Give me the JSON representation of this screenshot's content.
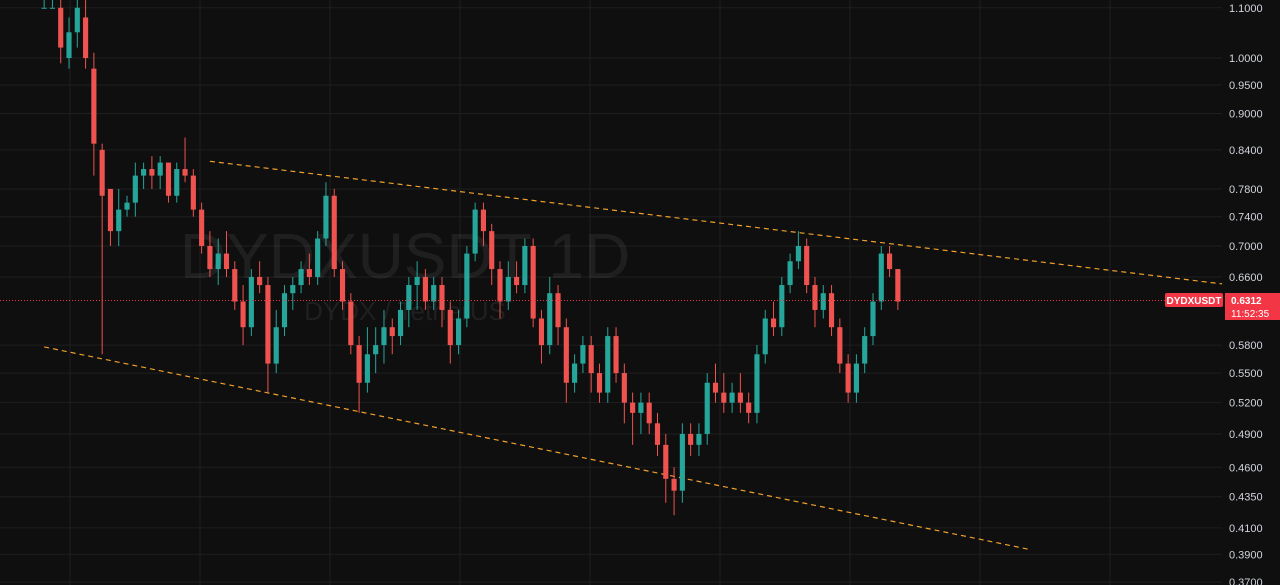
{
  "chart_data": {
    "type": "candlestick",
    "symbol_watermark": "DYDXUSDT 1D",
    "pair_watermark": "DYDX / TetherUS",
    "y_scale": "log",
    "ylim": [
      0.37,
      1.11
    ],
    "y_ticks": [
      "1.1000",
      "1.0000",
      "0.9500",
      "0.9000",
      "0.8400",
      "0.7800",
      "0.7400",
      "0.7000",
      "0.6600",
      "0.5800",
      "0.5500",
      "0.5200",
      "0.4900",
      "0.4600",
      "0.4350",
      "0.4100",
      "0.3900",
      "0.3700"
    ],
    "last_price": {
      "symbol": "DYDXUSDT",
      "price": "0.6312",
      "value": 0.6312,
      "countdown": "11:52:35"
    },
    "trendlines": [
      {
        "name": "upper",
        "from": [
          20,
          0.822
        ],
        "to": [
          158,
          0.632
        ]
      },
      {
        "name": "lower",
        "from": [
          0,
          0.578
        ],
        "to": [
          138,
          0.37
        ]
      }
    ],
    "candles": [
      [
        1.1,
        1.12,
        1.1,
        1.1
      ],
      [
        1.1,
        1.12,
        1.1,
        1.1
      ],
      [
        1.1,
        1.12,
        0.99,
        1.02
      ],
      [
        1.0,
        1.08,
        0.98,
        1.05
      ],
      [
        1.05,
        1.12,
        1.02,
        1.1
      ],
      [
        1.08,
        1.12,
        0.98,
        1.0
      ],
      [
        0.98,
        1.01,
        0.8,
        0.85
      ],
      [
        0.84,
        0.85,
        0.57,
        0.77
      ],
      [
        0.78,
        0.78,
        0.7,
        0.72
      ],
      [
        0.72,
        0.78,
        0.7,
        0.75
      ],
      [
        0.75,
        0.77,
        0.74,
        0.76
      ],
      [
        0.76,
        0.82,
        0.74,
        0.8
      ],
      [
        0.8,
        0.82,
        0.78,
        0.81
      ],
      [
        0.81,
        0.83,
        0.78,
        0.8
      ],
      [
        0.8,
        0.83,
        0.78,
        0.82
      ],
      [
        0.82,
        0.82,
        0.76,
        0.77
      ],
      [
        0.77,
        0.82,
        0.76,
        0.81
      ],
      [
        0.81,
        0.86,
        0.79,
        0.8
      ],
      [
        0.8,
        0.81,
        0.74,
        0.75
      ],
      [
        0.75,
        0.76,
        0.69,
        0.7
      ],
      [
        0.7,
        0.72,
        0.66,
        0.67
      ],
      [
        0.67,
        0.71,
        0.65,
        0.69
      ],
      [
        0.69,
        0.72,
        0.66,
        0.67
      ],
      [
        0.67,
        0.68,
        0.62,
        0.63
      ],
      [
        0.63,
        0.65,
        0.58,
        0.6
      ],
      [
        0.6,
        0.67,
        0.59,
        0.66
      ],
      [
        0.66,
        0.68,
        0.64,
        0.65
      ],
      [
        0.65,
        0.66,
        0.53,
        0.56
      ],
      [
        0.56,
        0.62,
        0.55,
        0.6
      ],
      [
        0.6,
        0.65,
        0.59,
        0.64
      ],
      [
        0.64,
        0.66,
        0.62,
        0.65
      ],
      [
        0.65,
        0.68,
        0.64,
        0.67
      ],
      [
        0.67,
        0.69,
        0.65,
        0.66
      ],
      [
        0.66,
        0.72,
        0.65,
        0.71
      ],
      [
        0.71,
        0.79,
        0.7,
        0.77
      ],
      [
        0.77,
        0.78,
        0.66,
        0.67
      ],
      [
        0.67,
        0.68,
        0.62,
        0.63
      ],
      [
        0.63,
        0.64,
        0.57,
        0.58
      ],
      [
        0.58,
        0.59,
        0.51,
        0.54
      ],
      [
        0.54,
        0.6,
        0.53,
        0.57
      ],
      [
        0.57,
        0.6,
        0.55,
        0.58
      ],
      [
        0.58,
        0.62,
        0.56,
        0.6
      ],
      [
        0.6,
        0.61,
        0.57,
        0.59
      ],
      [
        0.59,
        0.63,
        0.58,
        0.62
      ],
      [
        0.62,
        0.66,
        0.6,
        0.65
      ],
      [
        0.65,
        0.68,
        0.62,
        0.66
      ],
      [
        0.66,
        0.67,
        0.62,
        0.63
      ],
      [
        0.63,
        0.66,
        0.62,
        0.65
      ],
      [
        0.65,
        0.66,
        0.6,
        0.62
      ],
      [
        0.62,
        0.63,
        0.56,
        0.58
      ],
      [
        0.58,
        0.62,
        0.57,
        0.61
      ],
      [
        0.61,
        0.7,
        0.6,
        0.69
      ],
      [
        0.69,
        0.76,
        0.68,
        0.75
      ],
      [
        0.75,
        0.76,
        0.7,
        0.72
      ],
      [
        0.72,
        0.73,
        0.65,
        0.67
      ],
      [
        0.67,
        0.68,
        0.61,
        0.63
      ],
      [
        0.63,
        0.68,
        0.62,
        0.66
      ],
      [
        0.66,
        0.68,
        0.64,
        0.65
      ],
      [
        0.65,
        0.71,
        0.64,
        0.7
      ],
      [
        0.7,
        0.71,
        0.6,
        0.61
      ],
      [
        0.61,
        0.62,
        0.56,
        0.58
      ],
      [
        0.58,
        0.66,
        0.57,
        0.64
      ],
      [
        0.64,
        0.65,
        0.58,
        0.6
      ],
      [
        0.6,
        0.61,
        0.52,
        0.54
      ],
      [
        0.54,
        0.57,
        0.53,
        0.56
      ],
      [
        0.56,
        0.59,
        0.55,
        0.58
      ],
      [
        0.58,
        0.59,
        0.53,
        0.55
      ],
      [
        0.55,
        0.56,
        0.52,
        0.53
      ],
      [
        0.53,
        0.6,
        0.52,
        0.59
      ],
      [
        0.59,
        0.6,
        0.54,
        0.55
      ],
      [
        0.55,
        0.56,
        0.5,
        0.52
      ],
      [
        0.52,
        0.53,
        0.48,
        0.51
      ],
      [
        0.51,
        0.53,
        0.49,
        0.52
      ],
      [
        0.52,
        0.53,
        0.49,
        0.5
      ],
      [
        0.5,
        0.51,
        0.47,
        0.48
      ],
      [
        0.48,
        0.49,
        0.43,
        0.45
      ],
      [
        0.45,
        0.46,
        0.42,
        0.44
      ],
      [
        0.44,
        0.5,
        0.43,
        0.49
      ],
      [
        0.49,
        0.5,
        0.47,
        0.48
      ],
      [
        0.48,
        0.5,
        0.47,
        0.49
      ],
      [
        0.49,
        0.55,
        0.48,
        0.54
      ],
      [
        0.54,
        0.56,
        0.52,
        0.53
      ],
      [
        0.53,
        0.55,
        0.51,
        0.52
      ],
      [
        0.52,
        0.54,
        0.51,
        0.53
      ],
      [
        0.53,
        0.55,
        0.51,
        0.52
      ],
      [
        0.52,
        0.53,
        0.5,
        0.51
      ],
      [
        0.51,
        0.58,
        0.5,
        0.57
      ],
      [
        0.57,
        0.62,
        0.56,
        0.61
      ],
      [
        0.61,
        0.63,
        0.59,
        0.6
      ],
      [
        0.6,
        0.66,
        0.59,
        0.65
      ],
      [
        0.65,
        0.69,
        0.64,
        0.68
      ],
      [
        0.68,
        0.72,
        0.67,
        0.7
      ],
      [
        0.7,
        0.71,
        0.64,
        0.65
      ],
      [
        0.65,
        0.66,
        0.6,
        0.62
      ],
      [
        0.62,
        0.65,
        0.61,
        0.64
      ],
      [
        0.64,
        0.65,
        0.59,
        0.6
      ],
      [
        0.6,
        0.61,
        0.55,
        0.56
      ],
      [
        0.56,
        0.57,
        0.52,
        0.53
      ],
      [
        0.53,
        0.57,
        0.52,
        0.56
      ],
      [
        0.56,
        0.6,
        0.55,
        0.59
      ],
      [
        0.59,
        0.64,
        0.58,
        0.63
      ],
      [
        0.63,
        0.7,
        0.62,
        0.69
      ],
      [
        0.69,
        0.7,
        0.66,
        0.67
      ],
      [
        0.67,
        0.67,
        0.62,
        0.63
      ]
    ]
  },
  "colors": {
    "background": "#0f0f0f",
    "up": "#26a69a",
    "down": "#ef5350",
    "grid": "#1f1f1f",
    "trendline": "#f0a02a",
    "price_badge": "#f23645",
    "price_line": "#f23645"
  }
}
